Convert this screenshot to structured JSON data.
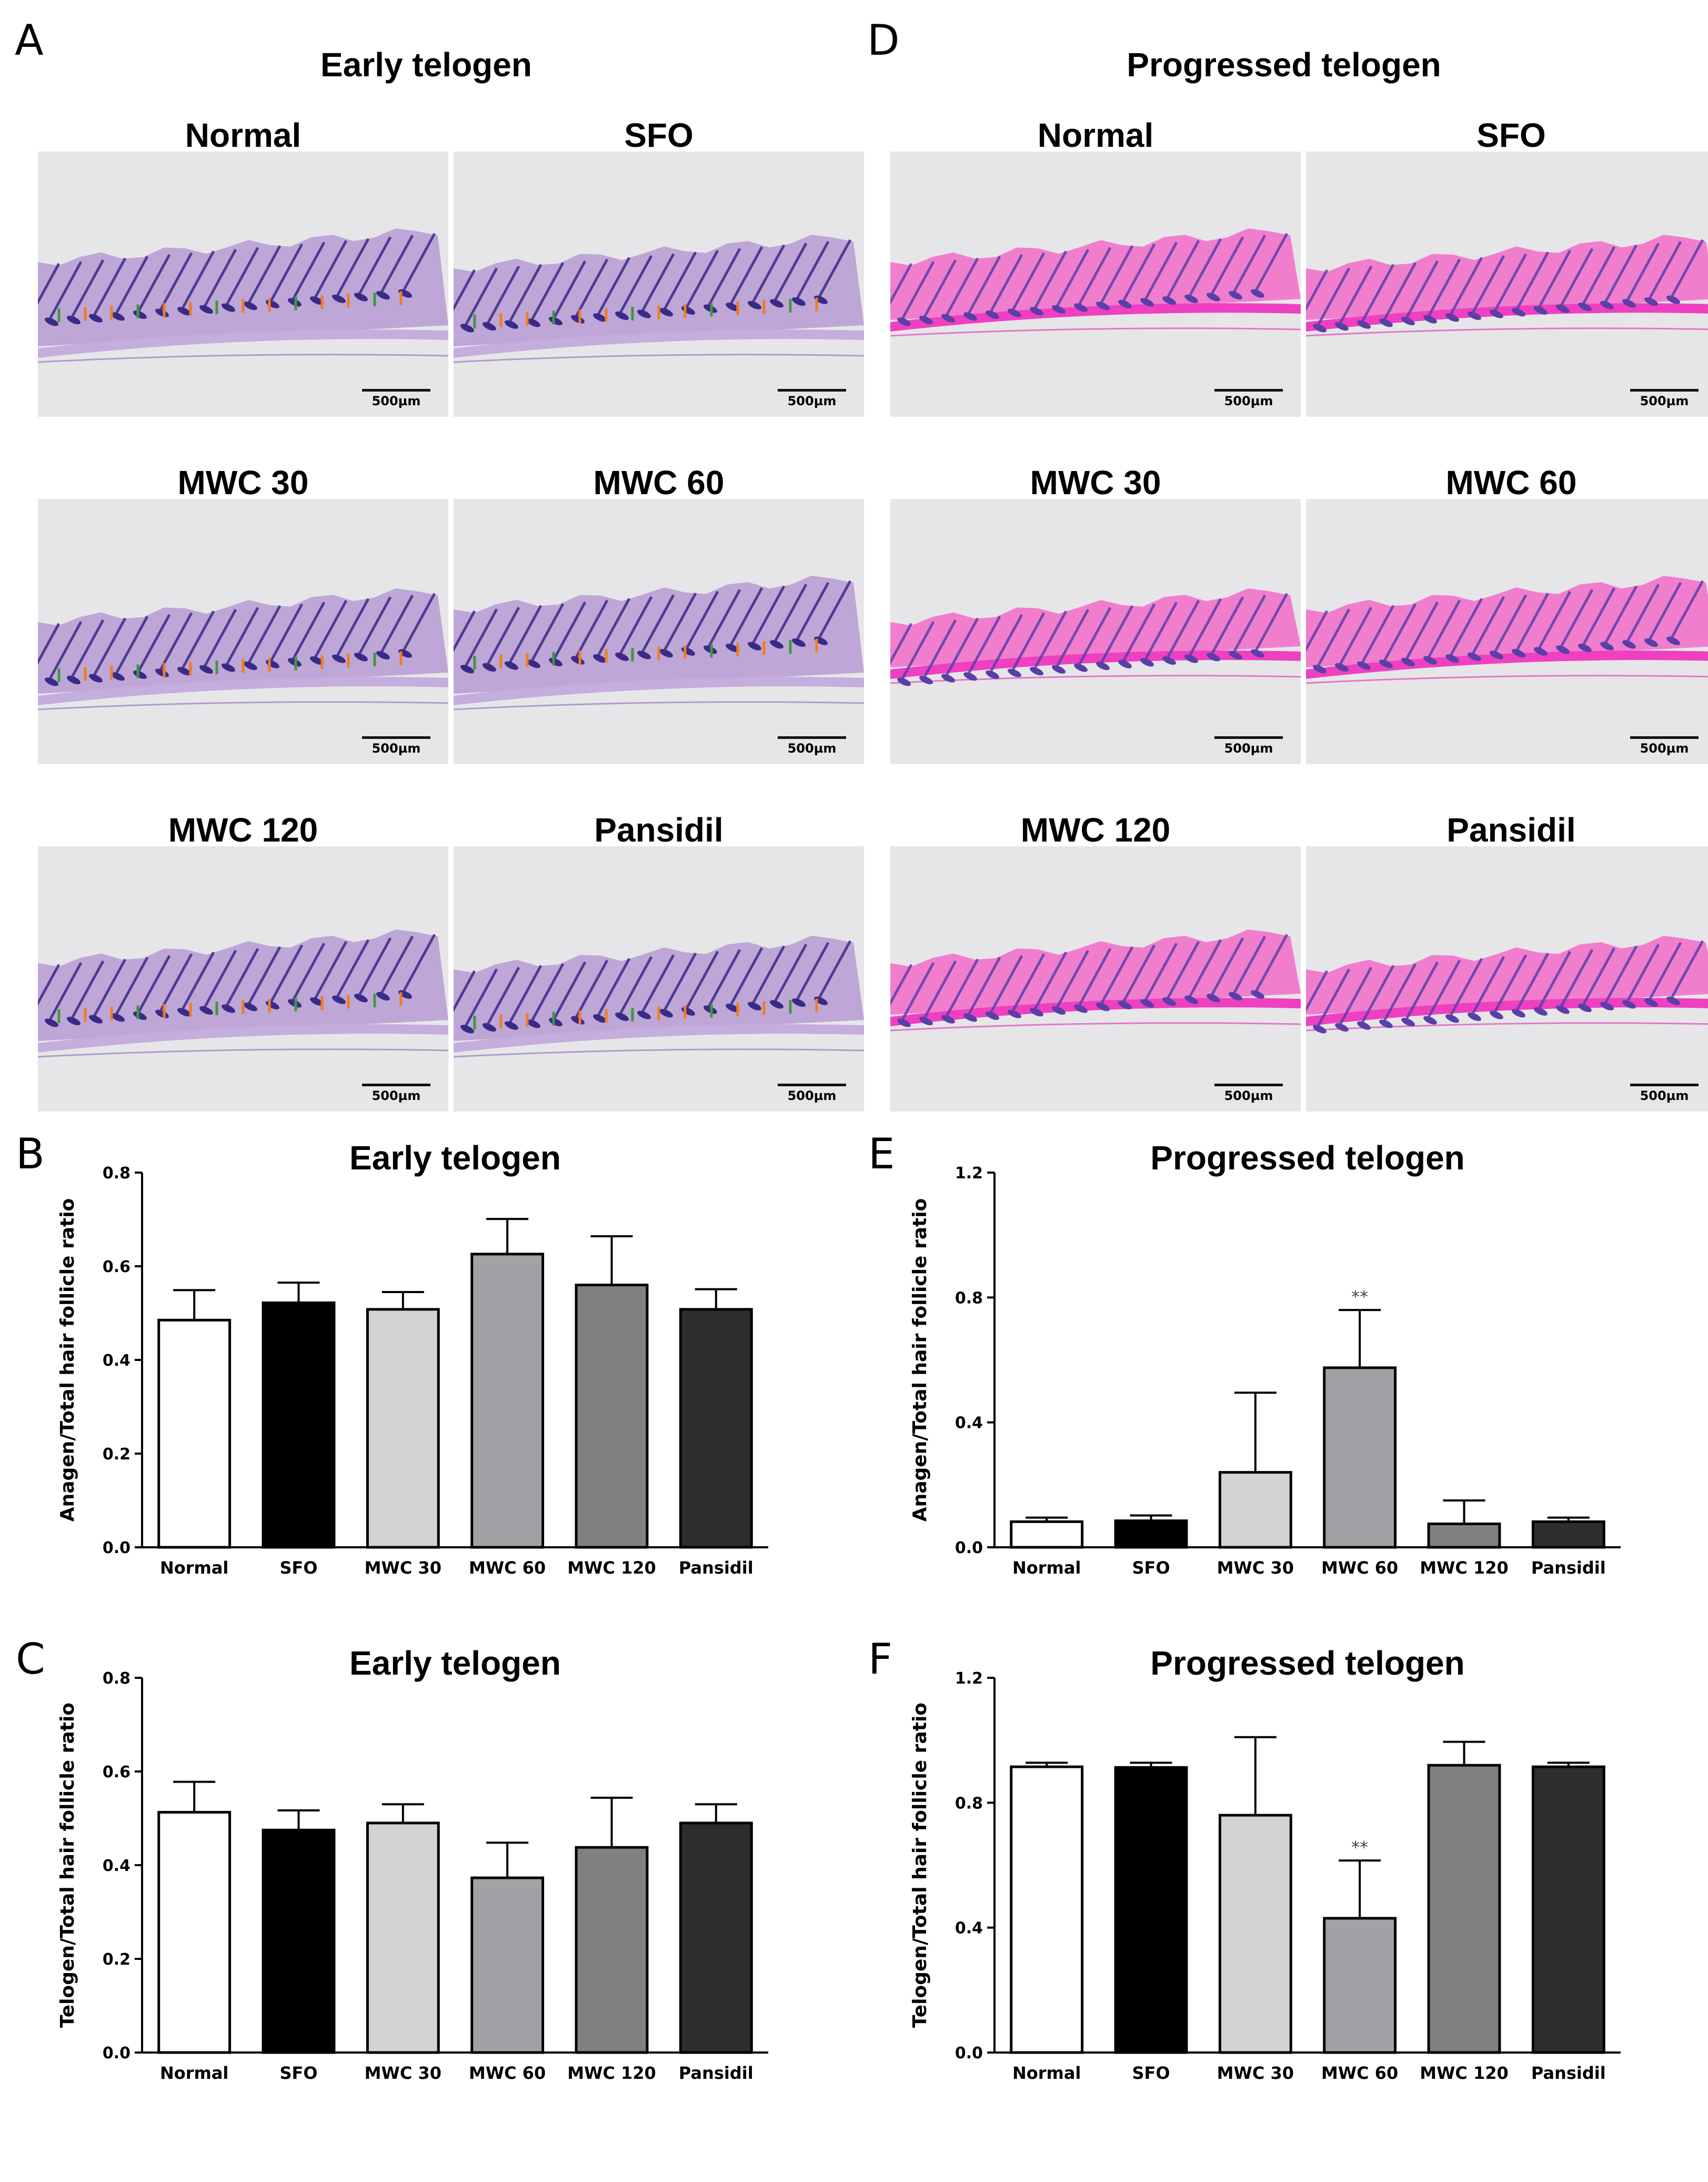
{
  "figure": {
    "panel_a": {
      "letter": "A",
      "stage": "Early telogen",
      "stain_tone": "purple",
      "images": [
        {
          "group": "Normal",
          "scale": "500µm"
        },
        {
          "group": "SFO",
          "scale": "500µm"
        },
        {
          "group": "MWC 30",
          "scale": "500µm"
        },
        {
          "group": "MWC 60",
          "scale": "500µm"
        },
        {
          "group": "MWC 120",
          "scale": "500µm"
        },
        {
          "group": "Pansidil",
          "scale": "500µm"
        }
      ]
    },
    "panel_d": {
      "letter": "D",
      "stage": "Progressed telogen",
      "stain_tone": "pink",
      "images": [
        {
          "group": "Normal",
          "scale": "500µm"
        },
        {
          "group": "SFO",
          "scale": "500µm"
        },
        {
          "group": "MWC 30",
          "scale": "500µm"
        },
        {
          "group": "MWC 60",
          "scale": "500µm"
        },
        {
          "group": "MWC 120",
          "scale": "500µm"
        },
        {
          "group": "Pansidil",
          "scale": "500µm"
        }
      ]
    },
    "colors": {
      "Normal": "#ffffff",
      "SFO": "#000000",
      "MWC 30": "#d3d3d3",
      "MWC 60": "#a2a2a6",
      "MWC 120": "#808080",
      "Pansidil": "#2d2d2d",
      "anagen_marker": "#f07d1e",
      "telogen_marker": "#3d9a3a"
    }
  },
  "chart_data": [
    {
      "id": "B",
      "letter": "B",
      "type": "bar",
      "title": "Early telogen",
      "xlabel": "",
      "ylabel": "Anagen/Total hair follicle ratio",
      "ylim": [
        0,
        0.8
      ],
      "yticks": [
        "0.0",
        "0.2",
        "0.4",
        "0.6",
        "0.8"
      ],
      "categories": [
        "Normal",
        "SFO",
        "MWC 30",
        "MWC 60",
        "MWC 120",
        "Pansidil"
      ],
      "values": [
        0.485,
        0.522,
        0.508,
        0.626,
        0.56,
        0.508
      ],
      "errors": [
        0.064,
        0.043,
        0.037,
        0.075,
        0.104,
        0.043
      ],
      "annotations": [
        "",
        "",
        "",
        "",
        "",
        ""
      ]
    },
    {
      "id": "C",
      "letter": "C",
      "type": "bar",
      "title": "Early telogen",
      "xlabel": "",
      "ylabel": "Telogen/Total hair follicle ratio",
      "ylim": [
        0,
        0.8
      ],
      "yticks": [
        "0.0",
        "0.2",
        "0.4",
        "0.6",
        "0.8"
      ],
      "categories": [
        "Normal",
        "SFO",
        "MWC 30",
        "MWC 60",
        "MWC 120",
        "Pansidil"
      ],
      "values": [
        0.513,
        0.475,
        0.49,
        0.373,
        0.438,
        0.49
      ],
      "errors": [
        0.065,
        0.042,
        0.04,
        0.075,
        0.106,
        0.04
      ],
      "annotations": [
        "",
        "",
        "",
        "",
        "",
        ""
      ]
    },
    {
      "id": "E",
      "letter": "E",
      "type": "bar",
      "title": "Progressed telogen",
      "xlabel": "",
      "ylabel": "Anagen/Total hair follicle ratio",
      "ylim": [
        0,
        1.2
      ],
      "yticks": [
        "0.0",
        "0.4",
        "0.8",
        "1.2"
      ],
      "categories": [
        "Normal",
        "SFO",
        "MWC 30",
        "MWC 60",
        "MWC 120",
        "Pansidil"
      ],
      "values": [
        0.082,
        0.085,
        0.24,
        0.575,
        0.075,
        0.082
      ],
      "errors": [
        0.013,
        0.017,
        0.255,
        0.185,
        0.075,
        0.013
      ],
      "annotations": [
        "",
        "",
        "",
        "**",
        "",
        ""
      ]
    },
    {
      "id": "F",
      "letter": "F",
      "type": "bar",
      "title": "Progressed telogen",
      "xlabel": "",
      "ylabel": "Telogen/Total hair follicle ratio",
      "ylim": [
        0,
        1.2
      ],
      "yticks": [
        "0.0",
        "0.4",
        "0.8",
        "1.2"
      ],
      "categories": [
        "Normal",
        "SFO",
        "MWC 30",
        "MWC 60",
        "MWC 120",
        "Pansidil"
      ],
      "values": [
        0.915,
        0.913,
        0.76,
        0.43,
        0.92,
        0.915
      ],
      "errors": [
        0.013,
        0.015,
        0.25,
        0.185,
        0.075,
        0.013
      ],
      "annotations": [
        "",
        "",
        "",
        "**",
        "",
        ""
      ]
    }
  ]
}
